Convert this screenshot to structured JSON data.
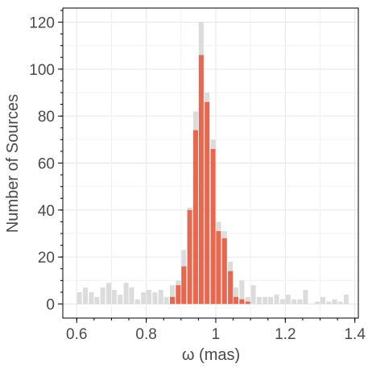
{
  "chart_data": {
    "type": "bar",
    "xlabel": "ω (mas)",
    "ylabel": "Number of Sources",
    "xlim": [
      0.56,
      1.41
    ],
    "ylim": [
      -6,
      126
    ],
    "grid": true,
    "x_ticks": [
      "0.6",
      "0.8",
      "1",
      "1.2",
      "1.4"
    ],
    "y_ticks": [
      "0",
      "20",
      "40",
      "60",
      "80",
      "100",
      "120"
    ],
    "bin_width": 0.0167,
    "colors": {
      "all": "#dcdcdc",
      "selected": "#e8674e"
    },
    "series": [
      {
        "role": "all",
        "bins": [
          [
            0.608,
            5
          ],
          [
            0.625,
            7
          ],
          [
            0.642,
            5
          ],
          [
            0.658,
            3
          ],
          [
            0.675,
            7
          ],
          [
            0.692,
            9
          ],
          [
            0.708,
            6
          ],
          [
            0.725,
            4
          ],
          [
            0.742,
            9
          ],
          [
            0.758,
            7
          ],
          [
            0.775,
            2
          ],
          [
            0.792,
            5
          ],
          [
            0.808,
            6
          ],
          [
            0.825,
            5
          ],
          [
            0.842,
            6
          ],
          [
            0.858,
            3
          ],
          [
            0.875,
            8
          ],
          [
            0.892,
            10
          ],
          [
            0.908,
            23
          ],
          [
            0.925,
            41
          ],
          [
            0.942,
            82
          ],
          [
            0.958,
            120
          ],
          [
            0.975,
            90
          ],
          [
            0.992,
            70
          ],
          [
            1.008,
            35
          ],
          [
            1.025,
            31
          ],
          [
            1.042,
            18
          ],
          [
            1.058,
            7
          ],
          [
            1.075,
            10
          ],
          [
            1.092,
            3
          ],
          [
            1.108,
            8
          ],
          [
            1.125,
            3
          ],
          [
            1.142,
            3
          ],
          [
            1.158,
            3
          ],
          [
            1.175,
            4
          ],
          [
            1.192,
            2
          ],
          [
            1.208,
            4
          ],
          [
            1.225,
            2
          ],
          [
            1.242,
            2
          ],
          [
            1.258,
            6
          ],
          [
            1.275,
            0
          ],
          [
            1.292,
            1
          ],
          [
            1.308,
            3
          ],
          [
            1.325,
            1
          ],
          [
            1.342,
            2
          ],
          [
            1.358,
            1
          ],
          [
            1.375,
            4
          ]
        ]
      },
      {
        "role": "selected",
        "bins": [
          [
            0.875,
            3
          ],
          [
            0.892,
            8
          ],
          [
            0.908,
            16
          ],
          [
            0.925,
            40
          ],
          [
            0.942,
            74
          ],
          [
            0.958,
            106
          ],
          [
            0.975,
            86
          ],
          [
            0.992,
            66
          ],
          [
            1.008,
            31
          ],
          [
            1.025,
            28
          ],
          [
            1.042,
            14
          ],
          [
            1.058,
            3
          ],
          [
            1.075,
            2
          ],
          [
            1.092,
            1
          ]
        ]
      }
    ]
  }
}
